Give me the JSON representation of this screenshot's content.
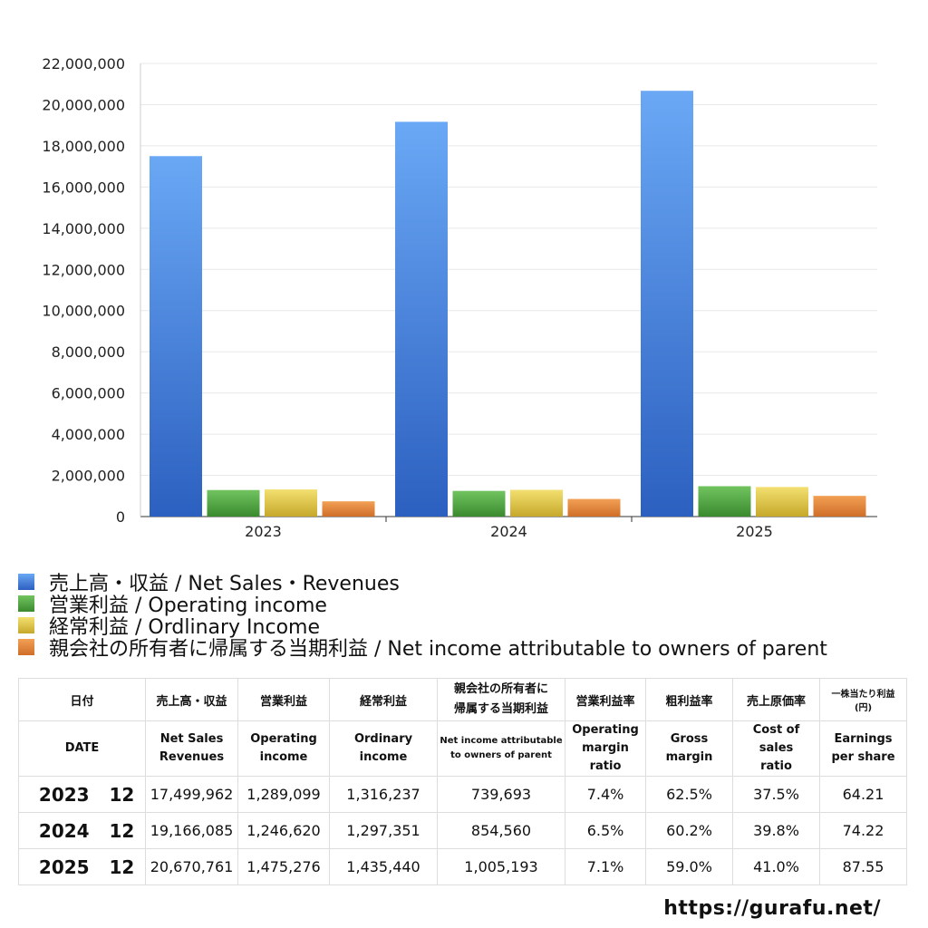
{
  "chart_data": {
    "type": "bar",
    "categories": [
      "2023",
      "2024",
      "2025"
    ],
    "ylim": [
      0,
      22000000
    ],
    "yticks": [
      "0",
      "2,000,000",
      "4,000,000",
      "6,000,000",
      "8,000,000",
      "10,000,000",
      "12,000,000",
      "14,000,000",
      "16,000,000",
      "18,000,000",
      "20,000,000",
      "22,000,000"
    ],
    "grid": true,
    "legend_placement": "bottom",
    "series": [
      {
        "name": "売上高・収益 / Net Sales・Revenues",
        "values": [
          17499962,
          19166085,
          20670761
        ],
        "color": "#4f8ee8"
      },
      {
        "name": "営業利益 / Operating income",
        "values": [
          1289099,
          1246620,
          1475276
        ],
        "color": "#55a845"
      },
      {
        "name": "経常利益 / Ordlinary Income",
        "values": [
          1316237,
          1297351,
          1435440
        ],
        "color": "#e0c845"
      },
      {
        "name": "親会社の所有者に帰属する当期利益 / Net income attributable to owners of parent",
        "values": [
          739693,
          854560,
          1005193
        ],
        "color": "#e58538"
      }
    ]
  },
  "table": {
    "header_jp": [
      "日付",
      "売上高・収益",
      "営業利益",
      "経常利益",
      "親会社の所有者に帰属する当期利益",
      "営業利益率",
      "粗利益率",
      "売上原価率",
      "一株当たり利益(円)"
    ],
    "header_en": [
      "DATE",
      "Net Sales Revenues",
      "Operating income",
      "Ordinary income",
      "Net income attributable to owners of parent",
      "Operating margin ratio",
      "Gross margin",
      "Cost of sales ratio",
      "Earnings per share"
    ],
    "rows": [
      [
        "2023",
        "12",
        "17,499,962",
        "1,289,099",
        "1,316,237",
        "739,693",
        "7.4%",
        "62.5%",
        "37.5%",
        "64.21"
      ],
      [
        "2024",
        "12",
        "19,166,085",
        "1,246,620",
        "1,297,351",
        "854,560",
        "6.5%",
        "60.2%",
        "39.8%",
        "74.22"
      ],
      [
        "2025",
        "12",
        "20,670,761",
        "1,475,276",
        "1,435,440",
        "1,005,193",
        "7.1%",
        "59.0%",
        "41.0%",
        "87.55"
      ]
    ]
  },
  "footer": {
    "url": "https://gurafu.net/"
  }
}
